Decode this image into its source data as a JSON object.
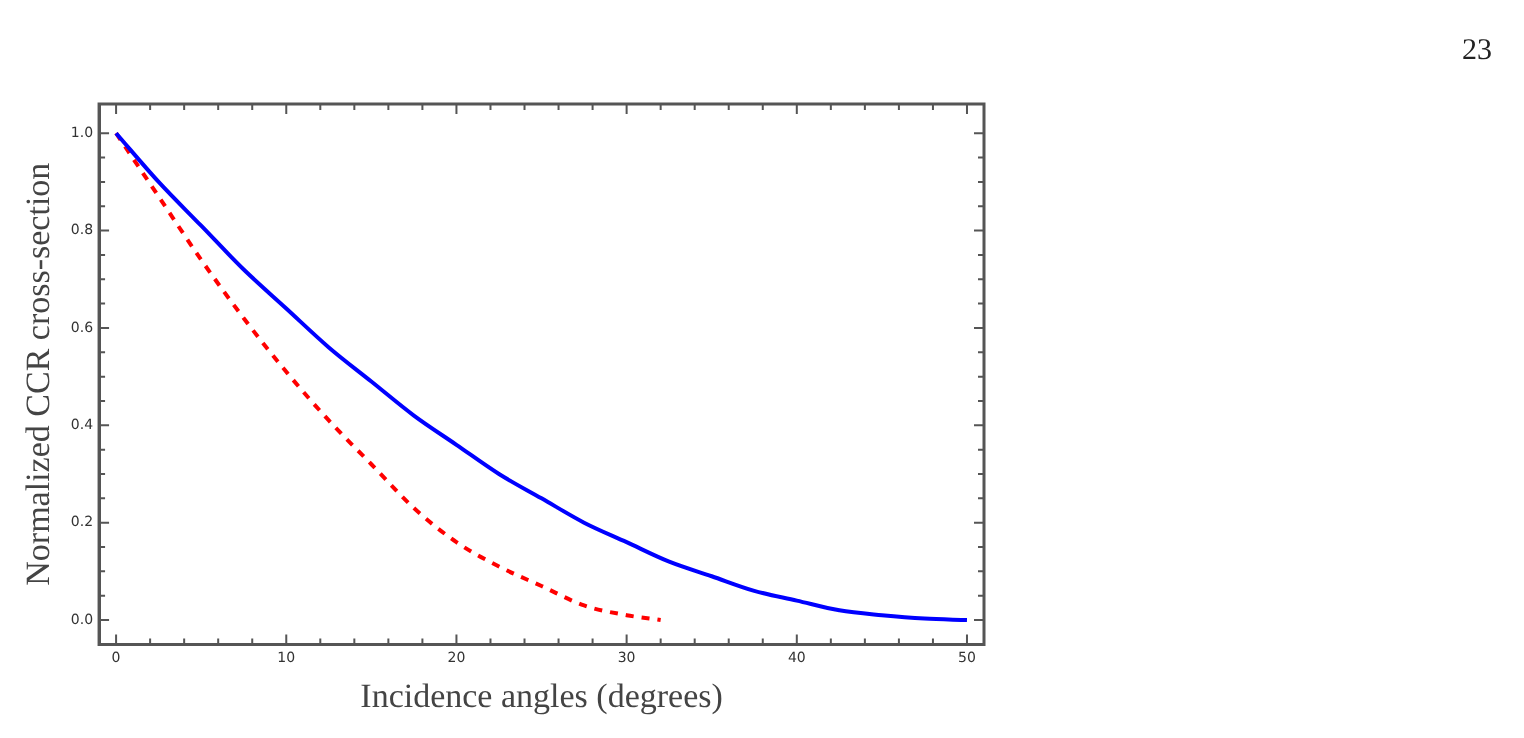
{
  "chart_data": {
    "type": "line",
    "xlabel": "Incidence angles (degrees)",
    "ylabel": "Normalized CCR cross-section",
    "annotations": [
      "23"
    ],
    "xlim": [
      -1,
      51
    ],
    "ylim": [
      -0.05,
      1.06
    ],
    "xticks": [
      0,
      {
        "value": 2,
        "label": null
      },
      {
        "value": 4,
        "label": null
      },
      {
        "value": 6,
        "label": null
      },
      {
        "value": 8,
        "label": null
      },
      10,
      {
        "value": 12,
        "label": null
      },
      {
        "value": 14,
        "label": null
      },
      {
        "value": 16,
        "label": null
      },
      {
        "value": 18,
        "label": null
      },
      20,
      {
        "value": 22,
        "label": null
      },
      {
        "value": 24,
        "label": null
      },
      {
        "value": 26,
        "label": null
      },
      {
        "value": 28,
        "label": null
      },
      30,
      {
        "value": 32,
        "label": null
      },
      {
        "value": 34,
        "label": null
      },
      {
        "value": 36,
        "label": null
      },
      {
        "value": 38,
        "label": null
      },
      40,
      {
        "value": 42,
        "label": null
      },
      {
        "value": 44,
        "label": null
      },
      {
        "value": 46,
        "label": null
      },
      {
        "value": 48,
        "label": null
      },
      50
    ],
    "yticks": [
      {
        "value": 0,
        "label": "0.0"
      },
      {
        "value": 0.05,
        "label": null
      },
      {
        "value": 0.1,
        "label": null
      },
      {
        "value": 0.15,
        "label": null
      },
      {
        "value": 0.2,
        "label": "0.2"
      },
      {
        "value": 0.25,
        "label": null
      },
      {
        "value": 0.3,
        "label": null
      },
      {
        "value": 0.35,
        "label": null
      },
      {
        "value": 0.4,
        "label": "0.4"
      },
      {
        "value": 0.45,
        "label": null
      },
      {
        "value": 0.5,
        "label": null
      },
      {
        "value": 0.55,
        "label": null
      },
      {
        "value": 0.6,
        "label": "0.6"
      },
      {
        "value": 0.65,
        "label": null
      },
      {
        "value": 0.7,
        "label": null
      },
      {
        "value": 0.75,
        "label": null
      },
      {
        "value": 0.8,
        "label": "0.8"
      },
      {
        "value": 0.85,
        "label": null
      },
      {
        "value": 0.9,
        "label": null
      },
      {
        "value": 0.95,
        "label": null
      },
      {
        "value": 1,
        "label": "1.0"
      }
    ],
    "grid": false,
    "legend": false,
    "marker": "none",
    "series": [
      {
        "color": "#0000ff",
        "line_style": "solid",
        "x": [
          0,
          2.5,
          5,
          7.5,
          10,
          12.5,
          15,
          17.5,
          20,
          22.5,
          25,
          27.5,
          30,
          32.5,
          35,
          37.5,
          40,
          42.5,
          45,
          47.5,
          50
        ],
        "values": [
          1,
          0.9,
          0.81,
          0.72,
          0.64,
          0.56,
          0.49,
          0.42,
          0.36,
          0.3,
          0.25,
          0.2,
          0.16,
          0.12,
          0.09,
          0.06,
          0.04,
          0.02,
          0.01,
          0.003,
          0
        ]
      },
      {
        "color": "#ff0000",
        "line_style": "dashed",
        "x": [
          0,
          2.5,
          5,
          7.5,
          10,
          12.5,
          15,
          17.5,
          20,
          22.5,
          25,
          27.5,
          30,
          32
        ],
        "values": [
          1,
          0.87,
          0.74,
          0.62,
          0.51,
          0.41,
          0.32,
          0.23,
          0.16,
          0.11,
          0.07,
          0.03,
          0.01,
          0
        ]
      }
    ]
  }
}
